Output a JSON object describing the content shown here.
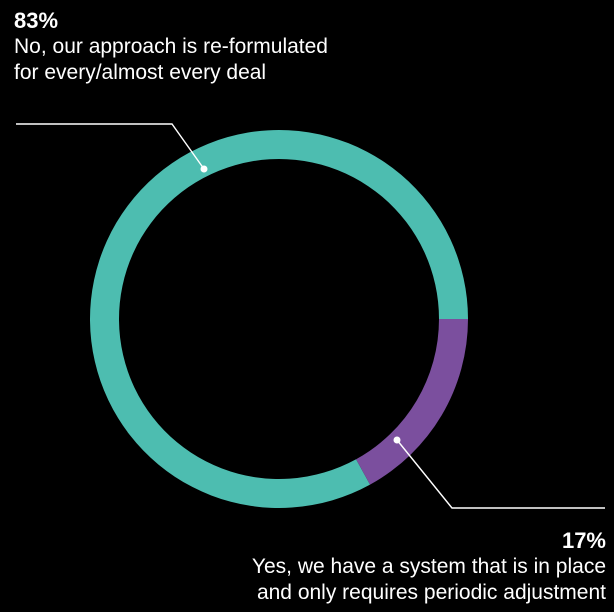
{
  "chart_data": {
    "type": "pie",
    "donut": true,
    "slices": [
      {
        "value": 83,
        "percent_label": "83%",
        "label": "No, our approach is re-formulated for every/almost every deal",
        "label_lines": [
          "No, our approach is re-formulated",
          "for every/almost every deal"
        ],
        "color": "#4dbdb0"
      },
      {
        "value": 17,
        "percent_label": "17%",
        "label": "Yes, we have a system that is in place and only requires periodic adjustment",
        "label_lines": [
          "Yes, we have a system that is in place",
          "and only requires periodic adjustment"
        ],
        "color": "#7b4f9e"
      }
    ],
    "legend": "none"
  },
  "colors": {
    "background": "#000000",
    "text": "#ffffff",
    "leader_line": "#ffffff"
  }
}
